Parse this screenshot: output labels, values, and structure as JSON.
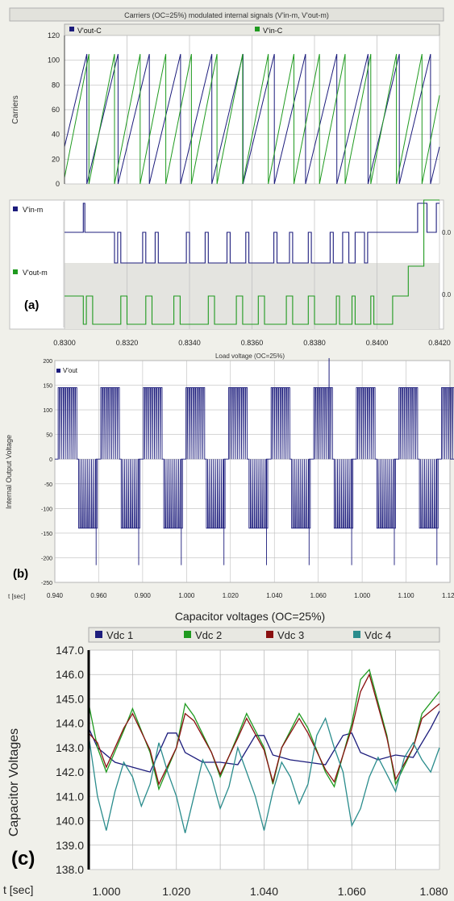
{
  "colors": {
    "blue": "#1c1c7c",
    "green": "#1f9a1f",
    "red": "#8a1010",
    "teal": "#2a8c8c",
    "grid": "#bdbdbd",
    "panel": "#f0f0ea"
  },
  "chart_data": [
    {
      "id": "carriers",
      "type": "line",
      "title": "Carriers (OC=25%) modulated internal signals (V'in-m, V'out-m)",
      "ylabel": "Carriers",
      "xlim": [
        0.83,
        0.842
      ],
      "ylim": [
        0,
        120
      ],
      "yticks": [
        "0",
        "20",
        "40",
        "60",
        "80",
        "100",
        "120"
      ],
      "grid": true,
      "legend_position": "top",
      "series": [
        {
          "name": "V'out-C",
          "color": "#1c1c7c",
          "kind": "sawtooth",
          "start": 0.83,
          "period": 0.001,
          "phase_value": 30,
          "min": 0,
          "max": 105
        },
        {
          "name": "V'in-C",
          "color": "#1f9a1f",
          "kind": "sawtooth",
          "start": 0.83,
          "period": 0.00082,
          "phase_value": 5,
          "min": 0,
          "max": 105
        }
      ]
    },
    {
      "id": "modulated",
      "type": "line",
      "xlim": [
        0.83,
        0.842
      ],
      "xticks": [
        "0.8300",
        "0.8320",
        "0.8340",
        "0.8360",
        "0.8380",
        "0.8400",
        "0.8420"
      ],
      "grid": true,
      "label": "(a)",
      "right_labels": [
        "0.0",
        "0.0"
      ],
      "series": [
        {
          "name": "V'in-m",
          "color": "#1c1c7c",
          "steps": [
            [
              0.83,
              1
            ],
            [
              0.8306,
              1
            ],
            [
              0.8306,
              2
            ],
            [
              0.83065,
              2
            ],
            [
              0.83065,
              1
            ],
            [
              0.8316,
              1
            ],
            [
              0.8316,
              0
            ],
            [
              0.8317,
              0
            ],
            [
              0.8317,
              1
            ],
            [
              0.8318,
              1
            ],
            [
              0.8318,
              0
            ],
            [
              0.8325,
              0
            ],
            [
              0.8325,
              1
            ],
            [
              0.8326,
              1
            ],
            [
              0.8326,
              0
            ],
            [
              0.8329,
              0
            ],
            [
              0.8329,
              1
            ],
            [
              0.833,
              1
            ],
            [
              0.833,
              0
            ],
            [
              0.8339,
              0
            ],
            [
              0.8339,
              1
            ],
            [
              0.834,
              1
            ],
            [
              0.834,
              0
            ],
            [
              0.8345,
              0
            ],
            [
              0.8345,
              1
            ],
            [
              0.8346,
              1
            ],
            [
              0.8346,
              0
            ],
            [
              0.8352,
              0
            ],
            [
              0.8352,
              1
            ],
            [
              0.8353,
              1
            ],
            [
              0.8353,
              0
            ],
            [
              0.8358,
              0
            ],
            [
              0.8358,
              1
            ],
            [
              0.8359,
              1
            ],
            [
              0.8359,
              0
            ],
            [
              0.8367,
              0
            ],
            [
              0.8367,
              1
            ],
            [
              0.8368,
              1
            ],
            [
              0.8368,
              0
            ],
            [
              0.8372,
              0
            ],
            [
              0.8372,
              1
            ],
            [
              0.8373,
              1
            ],
            [
              0.8373,
              0
            ],
            [
              0.8378,
              0
            ],
            [
              0.8378,
              1
            ],
            [
              0.8379,
              1
            ],
            [
              0.8379,
              0
            ],
            [
              0.8385,
              0
            ],
            [
              0.8385,
              1
            ],
            [
              0.8386,
              1
            ],
            [
              0.8386,
              0
            ],
            [
              0.8389,
              0
            ],
            [
              0.8389,
              1
            ],
            [
              0.8391,
              1
            ],
            [
              0.8391,
              0
            ],
            [
              0.8393,
              0
            ],
            [
              0.8393,
              1
            ],
            [
              0.8396,
              1
            ],
            [
              0.8396,
              0
            ],
            [
              0.8397,
              0
            ],
            [
              0.8397,
              1
            ],
            [
              0.8413,
              1
            ],
            [
              0.8413,
              2
            ],
            [
              0.8416,
              2
            ],
            [
              0.8416,
              1
            ],
            [
              0.8419,
              1
            ],
            [
              0.8419,
              2
            ],
            [
              0.842,
              2
            ]
          ]
        },
        {
          "name": "V'out-m",
          "color": "#1f9a1f",
          "steps": [
            [
              0.83,
              1
            ],
            [
              0.8306,
              1
            ],
            [
              0.8306,
              0
            ],
            [
              0.8307,
              0
            ],
            [
              0.8307,
              1
            ],
            [
              0.8309,
              1
            ],
            [
              0.8309,
              0
            ],
            [
              0.8318,
              0
            ],
            [
              0.8318,
              1
            ],
            [
              0.832,
              1
            ],
            [
              0.832,
              0
            ],
            [
              0.8326,
              0
            ],
            [
              0.8326,
              1
            ],
            [
              0.8328,
              1
            ],
            [
              0.8328,
              0
            ],
            [
              0.8335,
              0
            ],
            [
              0.8335,
              1
            ],
            [
              0.8337,
              1
            ],
            [
              0.8337,
              0
            ],
            [
              0.8346,
              0
            ],
            [
              0.8346,
              1
            ],
            [
              0.8348,
              1
            ],
            [
              0.8348,
              0
            ],
            [
              0.8355,
              0
            ],
            [
              0.8355,
              1
            ],
            [
              0.8357,
              1
            ],
            [
              0.8357,
              0
            ],
            [
              0.8362,
              0
            ],
            [
              0.8362,
              1
            ],
            [
              0.8364,
              1
            ],
            [
              0.8364,
              0
            ],
            [
              0.8371,
              0
            ],
            [
              0.8371,
              1
            ],
            [
              0.8373,
              1
            ],
            [
              0.8373,
              0
            ],
            [
              0.8378,
              0
            ],
            [
              0.8378,
              1
            ],
            [
              0.838,
              1
            ],
            [
              0.838,
              0
            ],
            [
              0.8387,
              0
            ],
            [
              0.8387,
              1
            ],
            [
              0.8388,
              1
            ],
            [
              0.8388,
              0
            ],
            [
              0.8392,
              0
            ],
            [
              0.8392,
              1
            ],
            [
              0.8393,
              1
            ],
            [
              0.8393,
              0
            ],
            [
              0.8398,
              0
            ],
            [
              0.8398,
              1
            ],
            [
              0.8399,
              1
            ],
            [
              0.8399,
              0
            ],
            [
              0.8405,
              0
            ],
            [
              0.8405,
              1
            ],
            [
              0.841,
              1
            ],
            [
              0.841,
              2
            ],
            [
              0.8415,
              2
            ],
            [
              0.8415,
              3
            ],
            [
              0.842,
              3
            ]
          ]
        }
      ]
    },
    {
      "id": "load-voltage",
      "type": "line",
      "title": "Load voltage (OC=25%)",
      "ylabel": "Internal Output Voltage",
      "xlabel": "t [sec]",
      "label": "(b)",
      "ylim": [
        -250,
        200
      ],
      "yticks": [
        "-250",
        "-200",
        "-150",
        "-100",
        "-50",
        "0",
        "50",
        "100",
        "150",
        "200"
      ],
      "xticks": [
        "0.940",
        "0.960",
        "0.900",
        "1.000",
        "1.020",
        "1.040",
        "1.060",
        "1.000",
        "1.100",
        "1.120"
      ],
      "grid": true,
      "legend_position": "top-left",
      "series": [
        {
          "name": "V'out",
          "color": "#1c1c7c",
          "levels": [
            -215,
            -140,
            0,
            145,
            205
          ],
          "cycles": 9.2
        }
      ]
    },
    {
      "id": "capacitor-voltages",
      "type": "line",
      "title": "Capacitor voltages (OC=25%)",
      "ylabel": "Capacitor Voltages",
      "xlabel": "t [sec]",
      "label": "(c)",
      "xlim": [
        1.0,
        1.08
      ],
      "ylim": [
        138,
        147
      ],
      "yticks": [
        "138.0",
        "139.0",
        "140.0",
        "141.0",
        "142.0",
        "143.0",
        "144.0",
        "145.0",
        "146.0",
        "147.0"
      ],
      "xticks": [
        "1.000",
        "1.020",
        "1.040",
        "1.060",
        "1.080"
      ],
      "grid": true,
      "legend_position": "top",
      "series": [
        {
          "name": "Vdc 1",
          "color": "#1c1c7c",
          "x": [
            1.0,
            1.002,
            1.006,
            1.01,
            1.014,
            1.018,
            1.02,
            1.022,
            1.026,
            1.03,
            1.034,
            1.038,
            1.04,
            1.042,
            1.046,
            1.05,
            1.054,
            1.058,
            1.06,
            1.062,
            1.066,
            1.07,
            1.074,
            1.078,
            1.08
          ],
          "values": [
            143.8,
            143.0,
            142.4,
            142.2,
            142.0,
            143.6,
            143.6,
            142.8,
            142.4,
            142.4,
            142.3,
            143.5,
            143.5,
            142.7,
            142.5,
            142.4,
            142.3,
            143.5,
            143.6,
            142.8,
            142.5,
            142.7,
            142.6,
            143.8,
            144.5
          ]
        },
        {
          "name": "Vdc 2",
          "color": "#1f9a1f",
          "x": [
            1.0,
            1.002,
            1.004,
            1.008,
            1.01,
            1.014,
            1.016,
            1.02,
            1.022,
            1.024,
            1.028,
            1.03,
            1.034,
            1.036,
            1.04,
            1.042,
            1.044,
            1.048,
            1.05,
            1.054,
            1.056,
            1.06,
            1.062,
            1.064,
            1.068,
            1.07,
            1.074,
            1.076,
            1.08
          ],
          "values": [
            144.8,
            143.0,
            142.0,
            143.7,
            144.6,
            142.8,
            141.3,
            143.0,
            144.8,
            144.3,
            142.8,
            141.8,
            143.5,
            144.4,
            143.0,
            141.5,
            143.0,
            144.4,
            143.8,
            142.0,
            141.4,
            144.0,
            145.8,
            146.2,
            143.5,
            141.5,
            143.0,
            144.4,
            145.3
          ]
        },
        {
          "name": "Vdc 3",
          "color": "#8a1010",
          "x": [
            1.0,
            1.002,
            1.004,
            1.008,
            1.01,
            1.014,
            1.016,
            1.02,
            1.022,
            1.024,
            1.028,
            1.03,
            1.034,
            1.036,
            1.04,
            1.042,
            1.044,
            1.048,
            1.05,
            1.054,
            1.056,
            1.06,
            1.062,
            1.064,
            1.068,
            1.07,
            1.074,
            1.076,
            1.08
          ],
          "values": [
            143.6,
            143.2,
            142.2,
            143.8,
            144.4,
            142.9,
            141.5,
            143.0,
            144.4,
            144.1,
            142.8,
            141.9,
            143.4,
            144.2,
            142.9,
            141.6,
            143.0,
            144.2,
            143.6,
            142.1,
            141.6,
            143.8,
            145.3,
            146.0,
            143.4,
            141.7,
            143.0,
            144.2,
            144.8
          ]
        },
        {
          "name": "Vdc 4",
          "color": "#2a8c8c",
          "x": [
            1.0,
            1.002,
            1.004,
            1.006,
            1.008,
            1.01,
            1.012,
            1.014,
            1.016,
            1.018,
            1.02,
            1.022,
            1.024,
            1.026,
            1.028,
            1.03,
            1.032,
            1.034,
            1.036,
            1.038,
            1.04,
            1.042,
            1.044,
            1.046,
            1.048,
            1.05,
            1.052,
            1.054,
            1.056,
            1.058,
            1.06,
            1.062,
            1.064,
            1.066,
            1.068,
            1.07,
            1.072,
            1.074,
            1.076,
            1.078,
            1.08
          ],
          "values": [
            143.5,
            141.0,
            139.6,
            141.2,
            142.4,
            141.8,
            140.6,
            141.5,
            143.2,
            142.0,
            141.0,
            139.5,
            141.0,
            142.5,
            141.8,
            140.5,
            141.4,
            143.0,
            142.0,
            141.0,
            139.6,
            141.2,
            142.4,
            141.8,
            140.7,
            141.5,
            143.5,
            144.2,
            143.0,
            142.0,
            139.8,
            140.5,
            141.8,
            142.6,
            141.9,
            141.2,
            142.6,
            143.2,
            142.5,
            142.0,
            143.0
          ]
        }
      ]
    }
  ]
}
